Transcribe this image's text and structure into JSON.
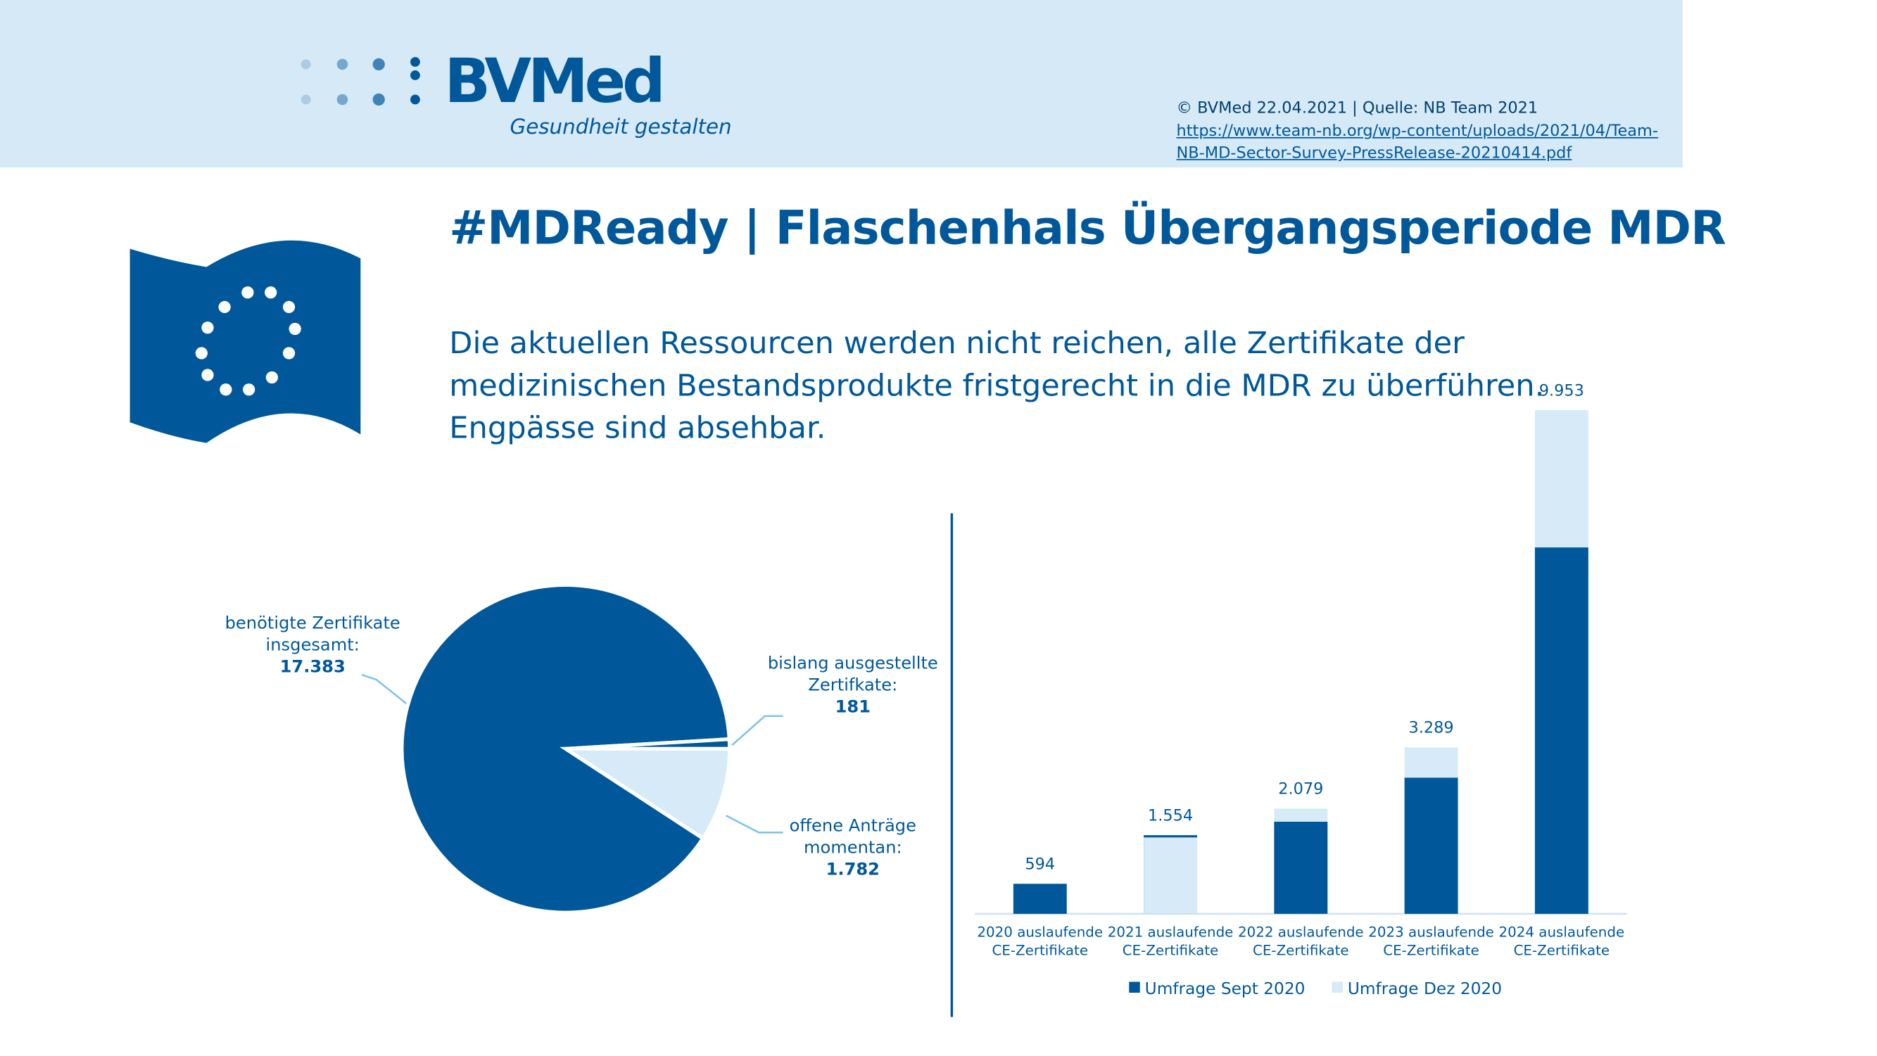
{
  "header": {
    "logo": "BVMed",
    "tagline": "Gesundheit gestalten",
    "copyright": "© BVMed 22.04.2021 | Quelle: NB Team 2021",
    "source_url_lines": [
      "https://www.team-nb.org/wp-content/uploads/2021/04/Team-",
      "NB-MD-Sector-Survey-PressRelease-20210414.pdf"
    ]
  },
  "title": "#MDReady | Flaschenhals Übergangsperiode MDR",
  "subtitle_lines": [
    "Die aktuellen Ressourcen werden nicht reichen, alle Zertifikate der",
    "medizinischen Bestandsprodukte fristgerecht in die MDR zu überführen.",
    "Engpässe sind absehbar."
  ],
  "chart_data": [
    {
      "type": "pie",
      "categories": [
        "benötigte Zertifikate insgesamt:",
        "bislang ausgestellte Zertifkate:",
        "offene Anträge momentan:"
      ],
      "values": [
        17383,
        181,
        1782
      ],
      "value_labels": [
        "17.383",
        "181",
        "1.782"
      ],
      "colors": [
        "#00589b",
        "#00589b",
        "#d6eaf8"
      ]
    },
    {
      "type": "bar",
      "categories": [
        "2020 auslaufende CE-Zertifikate",
        "2021 auslaufende CE-Zertifikate",
        "2022 auslaufende CE-Zertifikate",
        "2023 auslaufende CE-Zertifikate",
        "2024 auslaufende CE-Zertifikate"
      ],
      "series": [
        {
          "name": "Umfrage Sept 2020",
          "color": "#00589b",
          "values": [
            594,
            1554,
            1820,
            2690,
            7240
          ],
          "value_labels": [
            "594",
            "1.554",
            null,
            null,
            null
          ]
        },
        {
          "name": "Umfrage Dez 2020",
          "color": "#d6eaf8",
          "values": [
            null,
            1510,
            2079,
            3289,
            9953
          ],
          "value_labels": [
            null,
            null,
            "2.079",
            "3.289",
            "9.953"
          ]
        }
      ],
      "ylim": [
        0,
        10000
      ],
      "legend": "bottom"
    }
  ]
}
